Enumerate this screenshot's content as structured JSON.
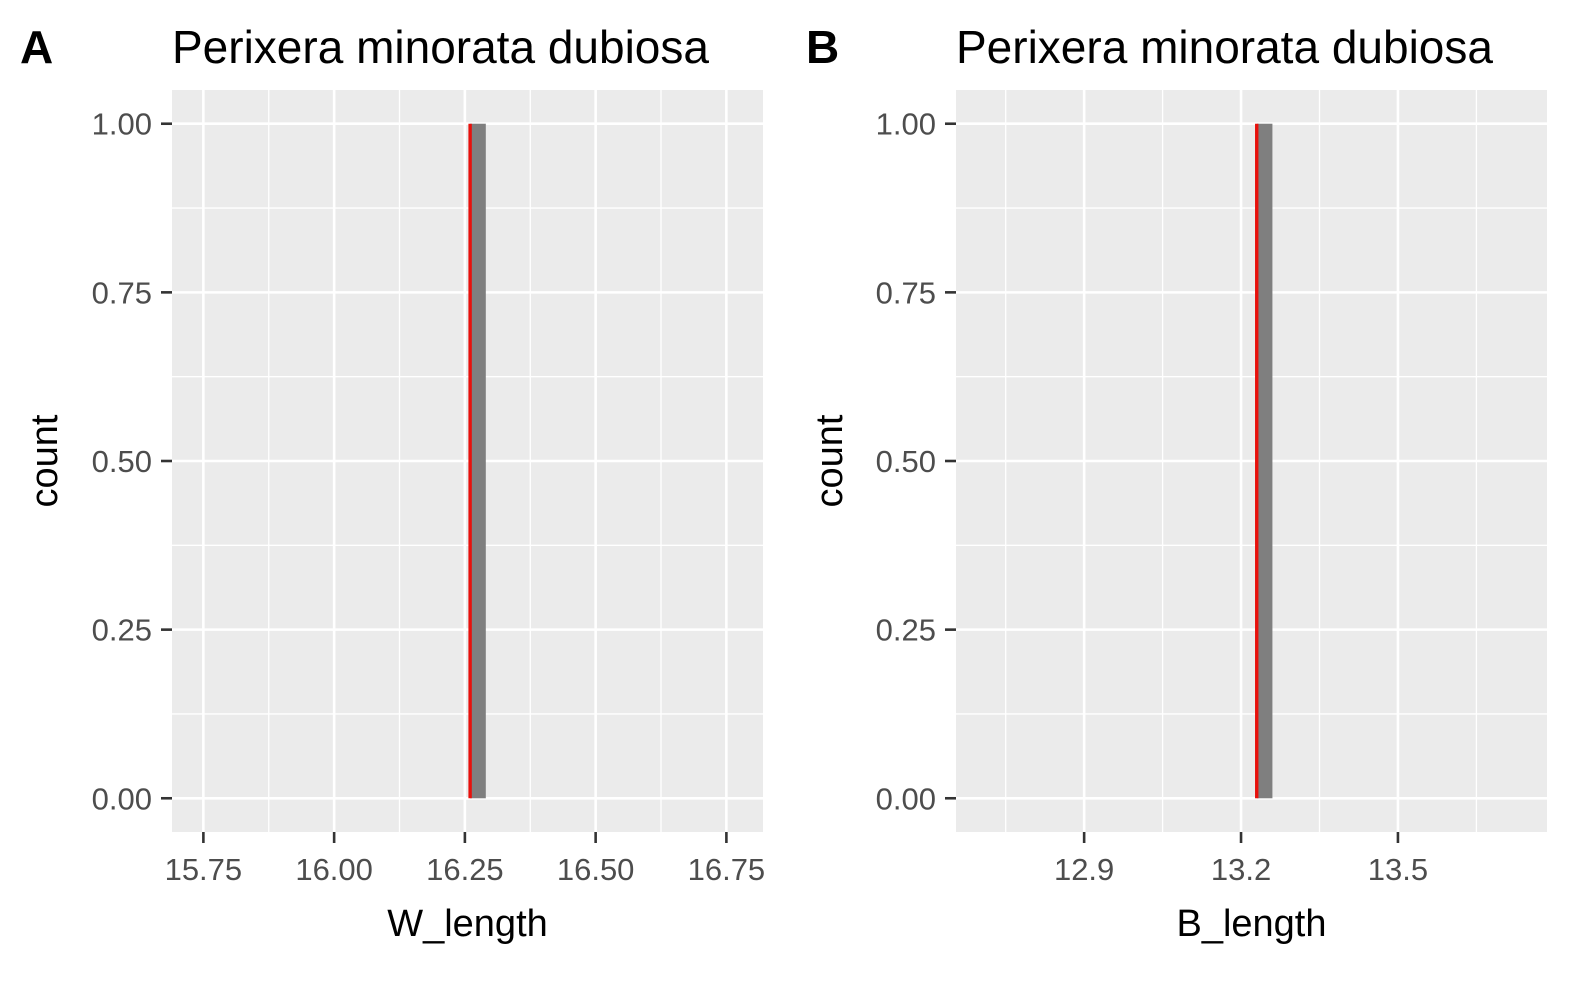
{
  "chart_data": [
    {
      "type": "bar",
      "panel_tag": "A",
      "title": "Perixera minorata dubiosa",
      "xlabel": "W_length",
      "ylabel": "count",
      "xlim": [
        15.69,
        16.82
      ],
      "ylim": [
        -0.05,
        1.05
      ],
      "x_ticks": [
        "15.75",
        "16.00",
        "16.25",
        "16.50",
        "16.75"
      ],
      "x_tick_values": [
        15.75,
        16.0,
        16.25,
        16.5,
        16.75
      ],
      "y_ticks": [
        "0.00",
        "0.25",
        "0.50",
        "0.75",
        "1.00"
      ],
      "y_tick_values": [
        0,
        0.25,
        0.5,
        0.75,
        1.0
      ],
      "bars": [
        {
          "x_start": 16.26,
          "x_end": 16.29,
          "count": 1
        }
      ],
      "reference_line": {
        "x": 16.26,
        "color": "#e8110c"
      },
      "bar_color": "#7f7f7f",
      "panel_bg": "#ebebeb",
      "grid": true
    },
    {
      "type": "bar",
      "panel_tag": "B",
      "title": "Perixera minorata dubiosa",
      "xlabel": "B_length",
      "ylabel": "count",
      "xlim": [
        12.655,
        13.785
      ],
      "ylim": [
        -0.05,
        1.05
      ],
      "x_ticks": [
        "12.9",
        "13.2",
        "13.5"
      ],
      "x_tick_values": [
        12.9,
        13.2,
        13.5
      ],
      "y_ticks": [
        "0.00",
        "0.25",
        "0.50",
        "0.75",
        "1.00"
      ],
      "y_tick_values": [
        0,
        0.25,
        0.5,
        0.75,
        1.0
      ],
      "bars": [
        {
          "x_start": 13.23,
          "x_end": 13.26,
          "count": 1
        }
      ],
      "reference_line": {
        "x": 13.23,
        "color": "#e8110c"
      },
      "bar_color": "#7f7f7f",
      "panel_bg": "#ebebeb",
      "grid": true
    }
  ]
}
